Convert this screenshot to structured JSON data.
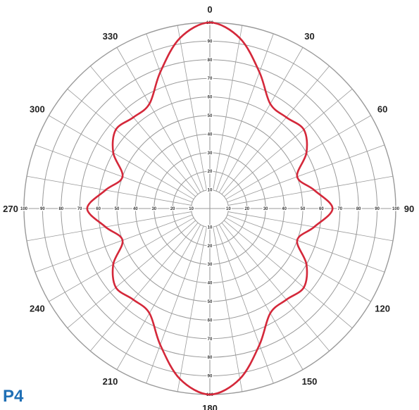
{
  "panel_label": "P4",
  "colors": {
    "curve": "#d4283a",
    "grid": "#9a9a9a",
    "panel_label": "#1f6fb5",
    "text": "#222222"
  },
  "chart_data": {
    "type": "polar-line",
    "title": "",
    "angle_ticks": [
      0,
      30,
      60,
      90,
      120,
      150,
      180,
      210,
      240,
      270,
      300,
      330
    ],
    "radial_ticks": [
      10,
      20,
      30,
      40,
      50,
      60,
      70,
      80,
      90,
      100
    ],
    "radial_range": [
      0,
      100
    ],
    "angular_gridline_step_deg": 10,
    "grid": true,
    "series": [
      {
        "angles": [
          0,
          10,
          20,
          30,
          40,
          50,
          60,
          70,
          80,
          90,
          100,
          110,
          120,
          130,
          140,
          150,
          160,
          170,
          180,
          190,
          200,
          210,
          220,
          230,
          240,
          250,
          260,
          270,
          280,
          290,
          300,
          310,
          320,
          330,
          340,
          350
        ],
        "values": [
          100,
          93,
          78,
          65,
          64,
          66,
          60,
          50,
          57,
          66,
          57,
          50,
          60,
          66,
          64,
          65,
          78,
          93,
          100,
          93,
          78,
          65,
          64,
          66,
          60,
          50,
          57,
          66,
          57,
          50,
          60,
          66,
          64,
          65,
          78,
          93
        ]
      }
    ]
  }
}
